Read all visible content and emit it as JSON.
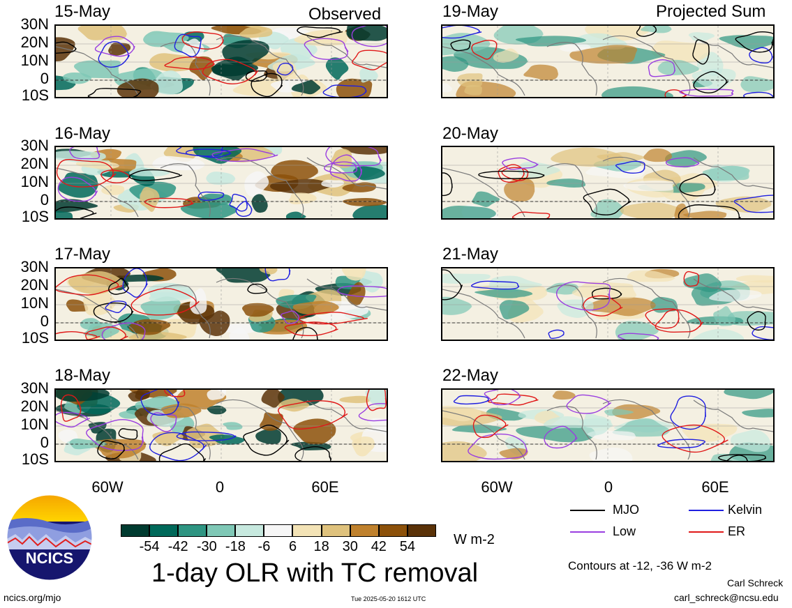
{
  "header": {
    "observed_label": "Observed",
    "projected_label": "Projected Sum"
  },
  "panels": {
    "left": [
      {
        "date": "15-May"
      },
      {
        "date": "16-May"
      },
      {
        "date": "17-May"
      },
      {
        "date": "18-May"
      }
    ],
    "right": [
      {
        "date": "19-May"
      },
      {
        "date": "20-May"
      },
      {
        "date": "21-May"
      },
      {
        "date": "22-May"
      }
    ]
  },
  "axes": {
    "lat_labels": [
      "30N",
      "20N",
      "10N",
      "0",
      "10S"
    ],
    "lon_labels": [
      "60W",
      "0",
      "60E"
    ]
  },
  "colorbar": {
    "labels": [
      "-54",
      "-42",
      "-30",
      "-18",
      "-6",
      "6",
      "18",
      "30",
      "42",
      "54"
    ],
    "colors": [
      "#003b30",
      "#00695a",
      "#2e9582",
      "#7fc8b6",
      "#c7e9df",
      "#f6f6f6",
      "#f3e3b6",
      "#dfc27d",
      "#bf812d",
      "#8c510a",
      "#5a3208"
    ],
    "unit": "W m-2"
  },
  "legend": {
    "items": [
      {
        "label": "MJO",
        "color": "#000000"
      },
      {
        "label": "Kelvin",
        "color": "#1f1fe0"
      },
      {
        "label": "Low",
        "color": "#9a3ee0"
      },
      {
        "label": "ER",
        "color": "#e01818"
      }
    ],
    "contours_note": "Contours at -12, -36 W m-2"
  },
  "title": "1-day OLR with TC removal",
  "footer": {
    "left": "ncics.org/mjo",
    "timestamp": "Tue 2025-05-20 1612 UTC",
    "author": "Carl Schreck",
    "email": "carl_schreck@ncsu.edu"
  },
  "logo": {
    "text": "NCICS"
  }
}
